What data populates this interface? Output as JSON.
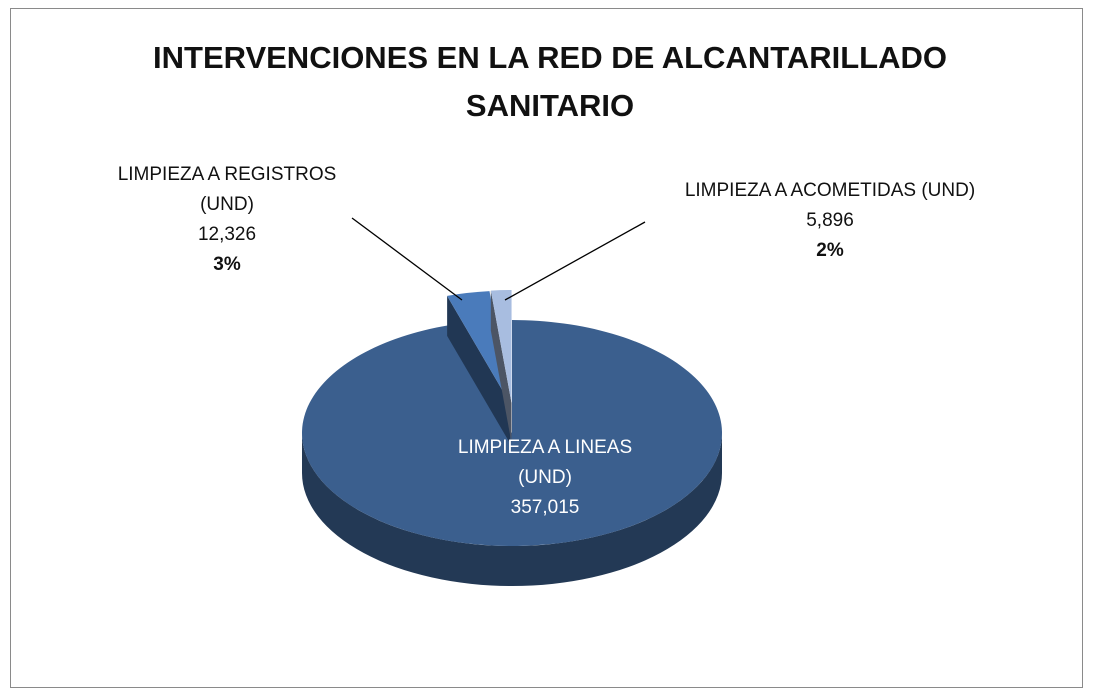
{
  "chart_data": {
    "type": "pie3d",
    "title": "INTERVENCIONES EN LA RED DE ALCANTARILLADO SANITARIO",
    "categories": [
      "LIMPIEZA A LINEAS (UND)",
      "LIMPIEZA A REGISTROS (UND)",
      "LIMPIEZA A ACOMETIDAS (UND)"
    ],
    "values": [
      357015,
      12326,
      5896
    ],
    "value_labels": [
      "357,015",
      "12,326",
      "5,896"
    ],
    "percent_labels": [
      null,
      "3%",
      "2%"
    ],
    "colors": [
      "#3b5f8e",
      "#4a7bbb",
      "#a8bde0"
    ]
  }
}
